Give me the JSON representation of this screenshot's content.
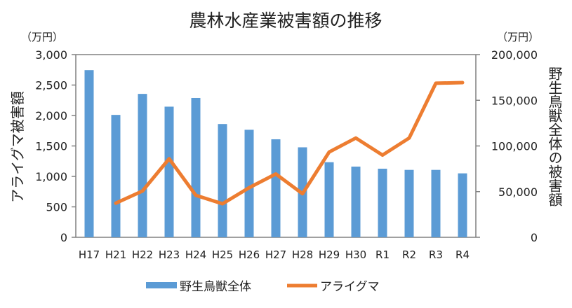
{
  "chart_data": {
    "type": "bar+line",
    "title": "農林水産業被害額の推移",
    "left_unit": "（万円）",
    "right_unit": "（万円）",
    "ylabel_left": "アライグマ被害額",
    "ylabel_right": "野生鳥獣全体の被害額",
    "categories": [
      "H17",
      "H21",
      "H22",
      "H23",
      "H24",
      "H25",
      "H26",
      "H27",
      "H28",
      "H29",
      "H30",
      "R1",
      "R2",
      "R3",
      "R4"
    ],
    "ylim_left": [
      0,
      3000
    ],
    "ylim_right": [
      0,
      200000
    ],
    "left_ticks": [
      "0",
      "500",
      "1,000",
      "1,500",
      "2,000",
      "2,500",
      "3,000"
    ],
    "right_ticks": [
      "0",
      "50,000",
      "100,000",
      "150,000",
      "200,000"
    ],
    "series": [
      {
        "name": "野生鳥獣全体",
        "type": "bar",
        "axis": "right",
        "color": "#5B9BD5",
        "values": [
          183000,
          134000,
          157000,
          143000,
          152500,
          124000,
          117700,
          107300,
          98500,
          82200,
          77400,
          75100,
          73800,
          73800,
          70000
        ]
      },
      {
        "name": "アライグマ",
        "type": "line",
        "axis": "left",
        "color": "#ED7D31",
        "values": [
          null,
          560,
          760,
          1290,
          690,
          550,
          815,
          1040,
          715,
          1400,
          1630,
          1350,
          1630,
          2530,
          2540
        ]
      }
    ],
    "legend_position": "bottom",
    "grid": false
  }
}
